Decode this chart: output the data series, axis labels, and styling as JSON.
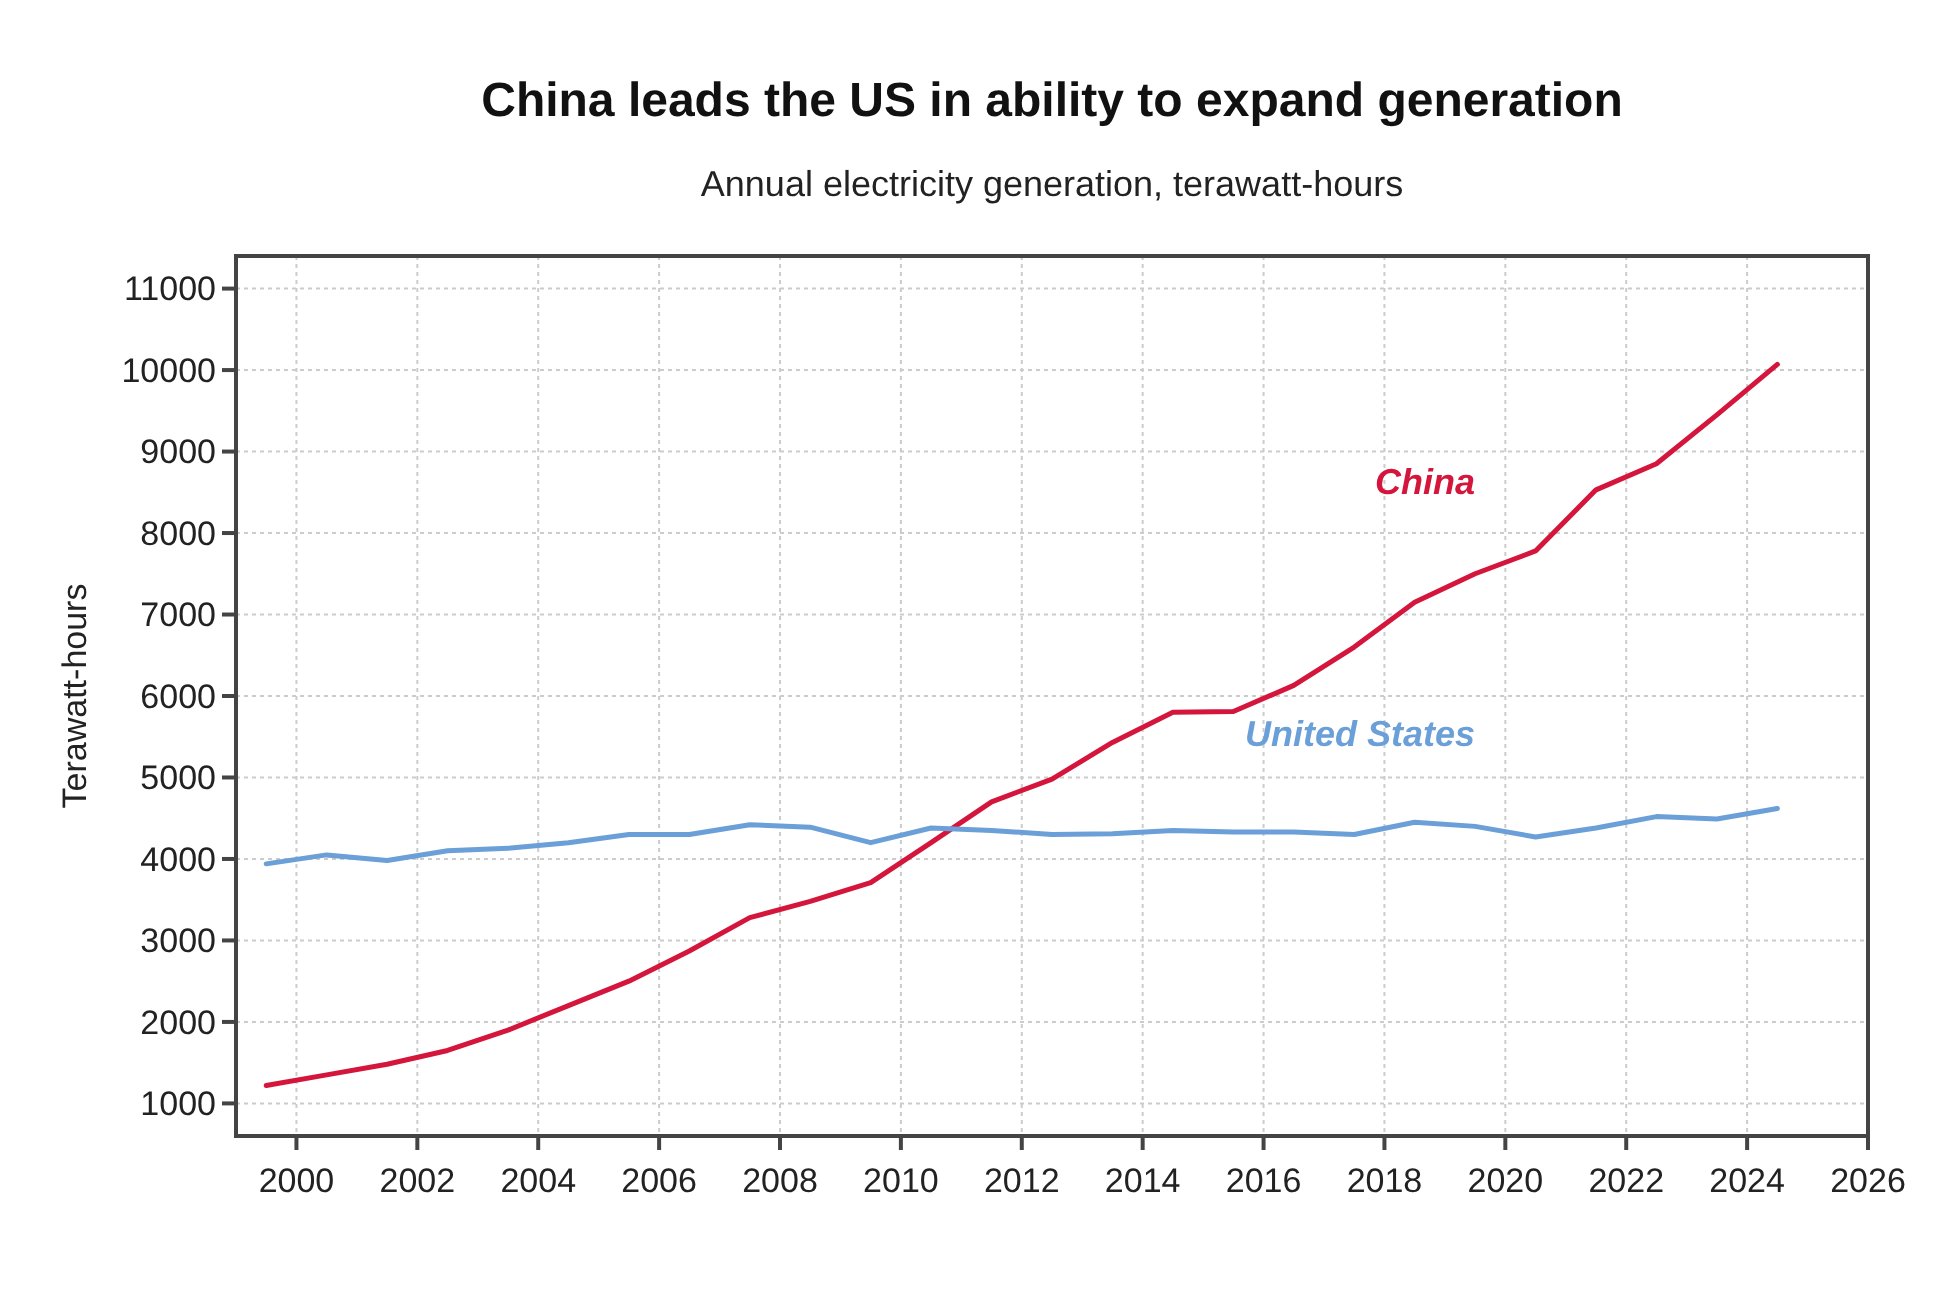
{
  "chart_data": {
    "type": "line",
    "title": "China leads the US in ability to expand generation",
    "subtitle": "Annual electricity generation, terawatt-hours",
    "ylabel": "Terawatt-hours",
    "x": [
      1999.5,
      2000.5,
      2001.5,
      2002.5,
      2003.5,
      2004.5,
      2005.5,
      2006.5,
      2007.5,
      2008.5,
      2009.5,
      2010.5,
      2011.5,
      2012.5,
      2013.5,
      2014.5,
      2015.5,
      2016.5,
      2017.5,
      2018.5,
      2019.5,
      2020.5,
      2021.5,
      2022.5,
      2023.5,
      2024.5
    ],
    "series": [
      {
        "name": "China",
        "color": "#d4163c",
        "values": [
          1220,
          1350,
          1480,
          1650,
          1900,
          2200,
          2500,
          2870,
          3280,
          3480,
          3710,
          4200,
          4700,
          4980,
          5430,
          5800,
          5810,
          6130,
          6600,
          7150,
          7500,
          7780,
          8530,
          8850,
          9450,
          10070
        ]
      },
      {
        "name": "United States",
        "color": "#6a9fd8",
        "values": [
          3940,
          4050,
          3980,
          4100,
          4130,
          4200,
          4300,
          4300,
          4420,
          4390,
          4200,
          4380,
          4350,
          4300,
          4310,
          4350,
          4330,
          4330,
          4300,
          4450,
          4400,
          4270,
          4380,
          4520,
          4490,
          4620
        ]
      }
    ],
    "xlim": [
      1999,
      2026
    ],
    "xticks": [
      2000,
      2002,
      2004,
      2006,
      2008,
      2010,
      2012,
      2014,
      2016,
      2018,
      2020,
      2022,
      2024,
      2026
    ],
    "ylim": [
      600,
      11400
    ],
    "yticks": [
      1000,
      2000,
      3000,
      4000,
      5000,
      6000,
      7000,
      8000,
      9000,
      10000,
      11000
    ],
    "grid": true,
    "line_style": "solid",
    "marker": "none"
  }
}
